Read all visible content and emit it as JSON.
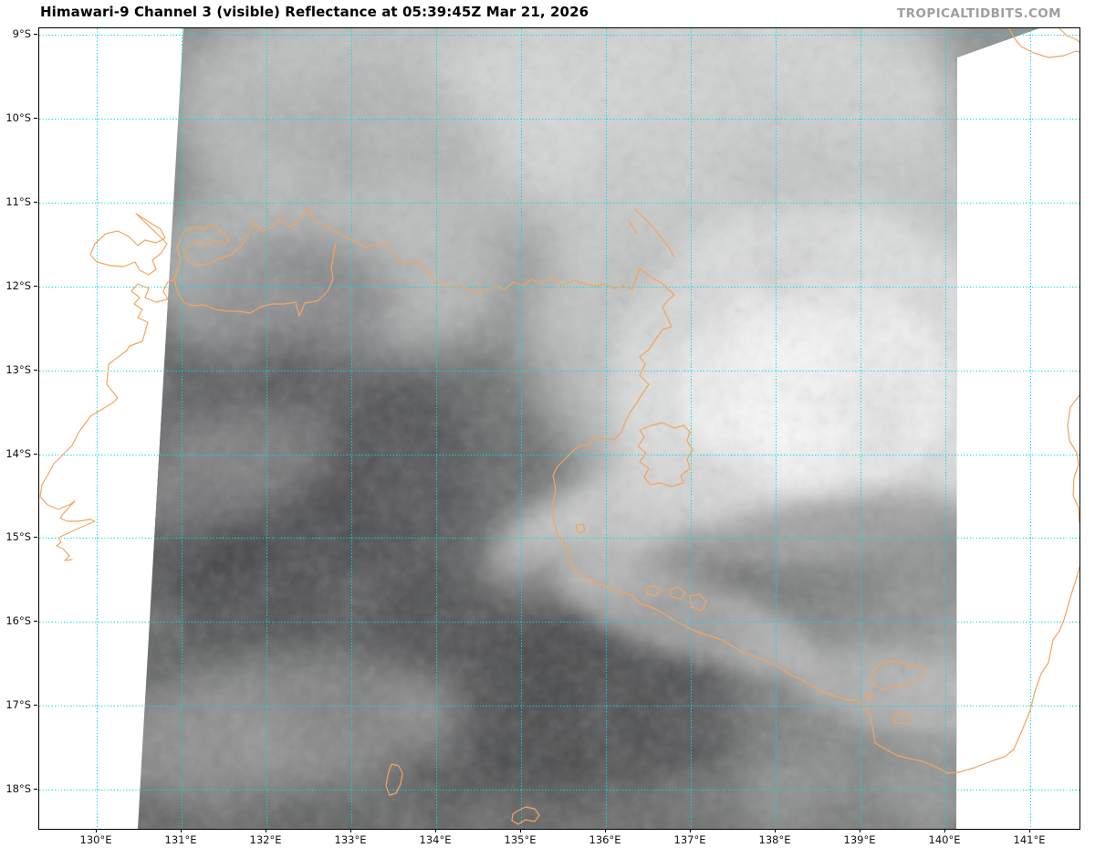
{
  "header": {
    "title": "Himawari-9 Channel 3 (visible) Reflectance at 05:39:45Z Mar 21, 2026",
    "watermark": "TROPICALTIDBITS.COM"
  },
  "axes": {
    "lat_ticks": [
      "9°S",
      "10°S",
      "11°S",
      "12°S",
      "13°S",
      "14°S",
      "15°S",
      "16°S",
      "17°S",
      "18°S"
    ],
    "lon_ticks": [
      "130°E",
      "131°E",
      "132°E",
      "133°E",
      "134°E",
      "135°E",
      "136°E",
      "137°E",
      "138°E",
      "139°E",
      "140°E",
      "141°E"
    ]
  },
  "colors": {
    "gridline": "#00dede",
    "coastline": "#f4a460",
    "watermark": "#9e9e9e"
  }
}
